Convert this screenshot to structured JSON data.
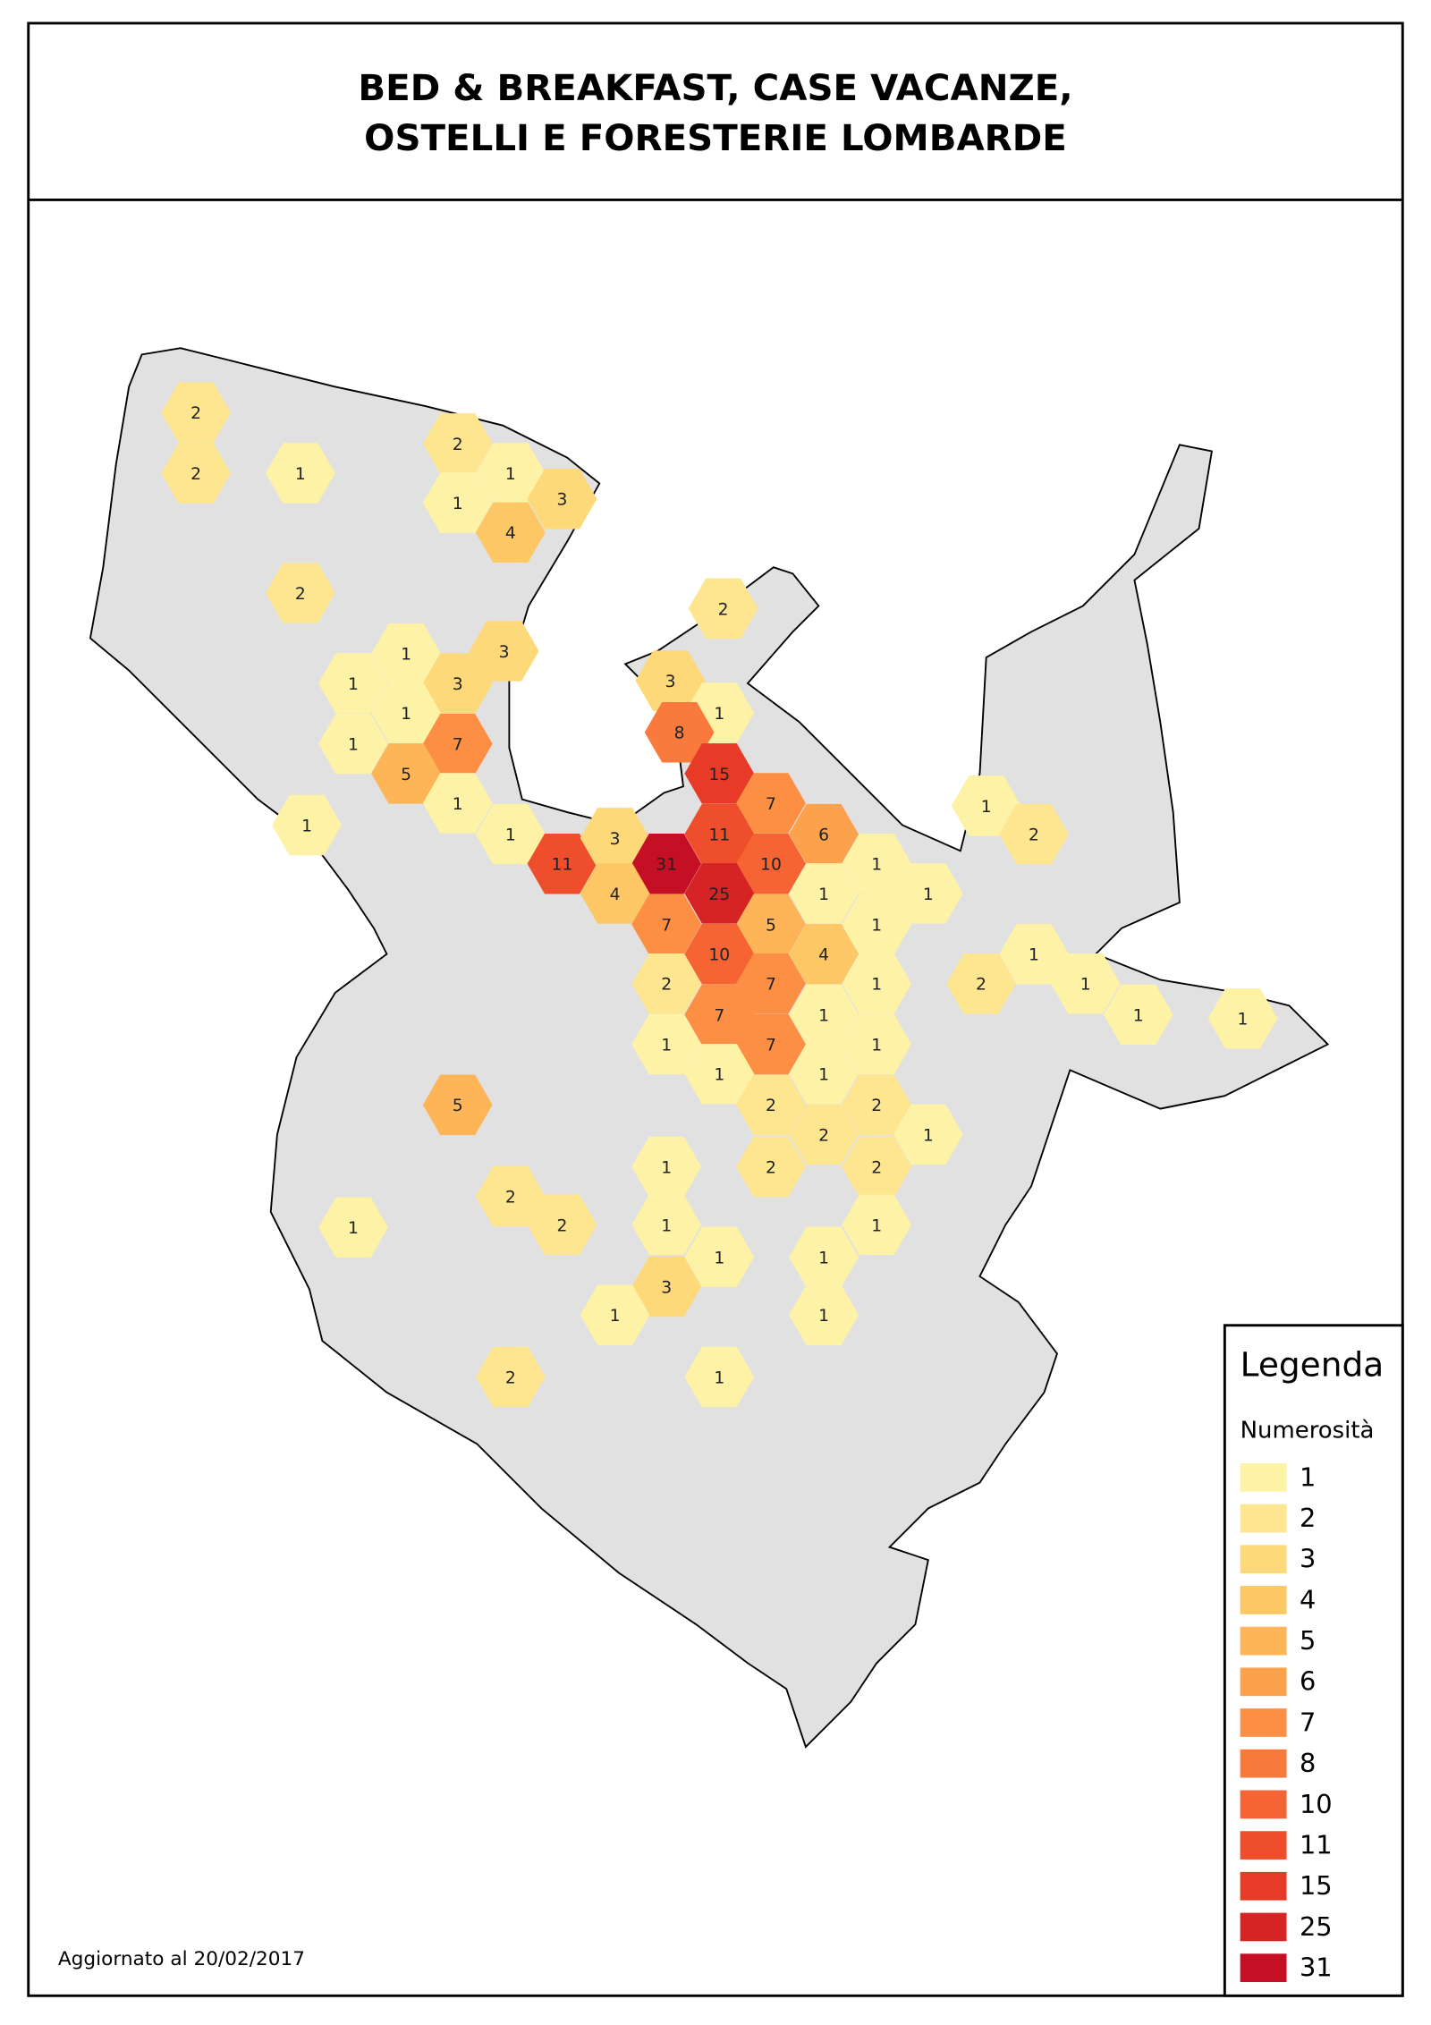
{
  "title": [
    "BED & BREAKFAST, CASE VACANZE,",
    "OSTELLI E FORESTERIE LOMBARDE"
  ],
  "legend": {
    "title": "Legenda",
    "subtitle": "Numerosità",
    "classes": [
      {
        "value": 1,
        "color": "#fef2a6"
      },
      {
        "value": 2,
        "color": "#fee690"
      },
      {
        "value": 3,
        "color": "#fed97a"
      },
      {
        "value": 4,
        "color": "#fdc766"
      },
      {
        "value": 5,
        "color": "#fdb557"
      },
      {
        "value": 6,
        "color": "#fca24c"
      },
      {
        "value": 7,
        "color": "#fc8f44"
      },
      {
        "value": 8,
        "color": "#f97a3c"
      },
      {
        "value": 10,
        "color": "#f66434"
      },
      {
        "value": 11,
        "color": "#ef4e2d"
      },
      {
        "value": 15,
        "color": "#e73b28"
      },
      {
        "value": 25,
        "color": "#d62325"
      },
      {
        "value": 31,
        "color": "#c40f24"
      }
    ]
  },
  "cells": [
    2,
    2,
    1,
    2,
    1,
    1,
    3,
    4,
    2,
    1,
    3,
    1,
    3,
    1,
    1,
    7,
    5,
    1,
    1,
    1,
    11,
    3,
    2,
    3,
    1,
    8,
    15,
    7,
    6,
    11,
    31,
    10,
    1,
    4,
    25,
    1,
    1,
    7,
    5,
    1,
    10,
    4,
    2,
    7,
    1,
    7,
    1,
    1,
    7,
    1,
    1,
    1,
    2,
    2,
    2,
    1,
    2,
    2,
    1,
    1,
    1,
    1,
    1,
    3,
    1,
    1,
    2,
    2,
    1,
    5,
    2,
    1,
    1,
    2,
    1,
    2,
    1,
    1,
    1
  ],
  "footer": "Aggiornato al 20/02/2017"
}
